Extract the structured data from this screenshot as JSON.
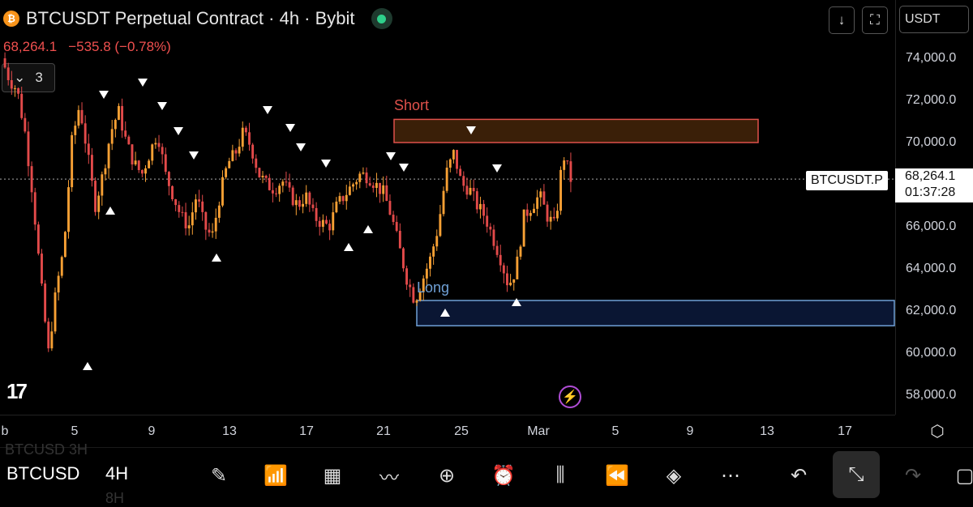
{
  "header": {
    "coin_glyph": "₿",
    "title": "BTCUSDT Perpetual Contract · 4h · Bybit",
    "price": "68,264.1",
    "change": "−535.8 (−0.78%)",
    "indicator_count": "3",
    "currency": "USDT"
  },
  "price_axis": [
    "74,000.0",
    "72,000.0",
    "70,000.0",
    "68,264.1",
    "66,000.0",
    "64,000.0",
    "62,000.0",
    "60,000.0",
    "58,000.0"
  ],
  "price_axis_values": [
    74000,
    72000,
    70000,
    68264.1,
    66000,
    64000,
    62000,
    60000,
    58000
  ],
  "last_price": {
    "symbol": "BTCUSDT.P",
    "price": "68,264.1",
    "countdown": "01:37:28"
  },
  "date_axis": [
    "b",
    "5",
    "9",
    "13",
    "17",
    "21",
    "25",
    "Mar",
    "5",
    "9",
    "13",
    "17"
  ],
  "zones": {
    "short_label": "Short",
    "long_label": "Long"
  },
  "toolbar": {
    "symbol": "BTCUSD",
    "interval": "4H",
    "ghost_top": "BTCUSD  3H",
    "ghost_bottom": "8H"
  },
  "colors": {
    "down": "#e34a4a",
    "up": "#f7a034",
    "short_zone": "#3a1f08",
    "long_zone": "#0a1633",
    "accent_purple": "#b04dd6"
  },
  "chart_data": {
    "type": "candlestick",
    "ylim": [
      57000,
      75000
    ],
    "last_price": 68264.1,
    "zones": [
      {
        "name": "Short",
        "low": 70000,
        "high": 71100
      },
      {
        "name": "Long",
        "low": 61300,
        "high": 62500
      }
    ],
    "close_path": [
      74000,
      73000,
      72500,
      70500,
      67500,
      63500,
      60000,
      63000,
      65000,
      70000,
      71800,
      69500,
      67000,
      68500,
      70500,
      71500,
      70000,
      69000,
      68500,
      69500,
      70500,
      68500,
      67500,
      66500,
      66000,
      67500,
      66000,
      65500,
      67500,
      69000,
      69500,
      70500,
      69800,
      68500,
      68000,
      67800,
      68200,
      67500,
      67000,
      67500,
      66500,
      66200,
      66000,
      67000,
      67500,
      68000,
      68500,
      68400,
      68000,
      67600,
      66500,
      65000,
      63500,
      62500,
      63500,
      64500,
      66000,
      68500,
      69500,
      68000,
      67800,
      67000,
      66500,
      65500,
      64500,
      63200,
      64000,
      66500,
      67000,
      67500,
      66500,
      66000,
      69500,
      68264
    ]
  }
}
